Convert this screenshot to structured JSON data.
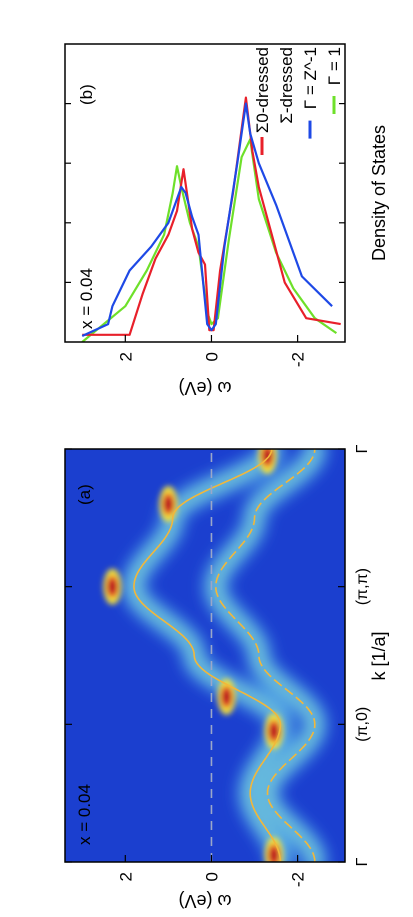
{
  "figure": {
    "orientation": "rotated 90 degrees counter-clockwise",
    "colors": {
      "sigma0_dressed": "#e8202a",
      "sigma_dressed": "#1e49e6",
      "gamma_1": "#6ee02a",
      "map_low": "#0a1f9e",
      "map_high": "#b0001a",
      "band_curve": "#f2b73a"
    }
  },
  "chart_data": [
    {
      "panel": "(a)",
      "type": "heatmap",
      "annotation": "x = 0.04",
      "xlabel": "k [1/a]",
      "ylabel": "ω (eV)",
      "x_ticks": [
        "Γ",
        "(π,0)",
        "(π,π)",
        "Γ"
      ],
      "y_ticks": [
        "2",
        "0",
        "-2"
      ],
      "ylim": [
        -3.1,
        3.4
      ],
      "grid": false,
      "fermi_level_line": 0,
      "k_path_points": [
        0,
        1,
        2,
        3
      ],
      "intensity_peaks": [
        {
          "k": 0.05,
          "omega": -1.45
        },
        {
          "k": 0.95,
          "omega": -1.45
        },
        {
          "k": 1.2,
          "omega": -0.35
        },
        {
          "k": 2.0,
          "omega": 2.3
        },
        {
          "k": 2.6,
          "omega": 1.0
        },
        {
          "k": 2.95,
          "omega": -1.3
        }
      ],
      "band_curves": [
        {
          "k": [
            0.0,
            0.5,
            1.0,
            1.5,
            2.0,
            2.5,
            3.0
          ],
          "omega": [
            -1.6,
            -0.9,
            -1.6,
            0.4,
            1.8,
            0.9,
            -1.4
          ]
        },
        {
          "k": [
            0.0,
            0.5,
            1.0,
            1.5,
            2.0,
            2.5,
            3.0
          ],
          "omega": [
            -2.4,
            -1.3,
            -2.4,
            -1.1,
            -0.1,
            -1.0,
            -2.4
          ]
        }
      ]
    },
    {
      "panel": "(b)",
      "type": "line",
      "annotation": "x = 0.04",
      "xlabel": "Density of States",
      "ylabel": "ω (eV)",
      "y_ticks": [
        "2",
        "0",
        "-2"
      ],
      "ylim": [
        -3.1,
        3.4
      ],
      "xlim": [
        0,
        5.0
      ],
      "grid": false,
      "legend_position": "upper-right",
      "series": [
        {
          "name": "Σ0-dressed",
          "color_key": "sigma0_dressed",
          "omega": [
            3.0,
            1.9,
            1.6,
            1.3,
            1.0,
            0.8,
            0.65,
            0.55,
            0.45,
            0.3,
            0.15,
            0.05,
            -0.05,
            -0.2,
            -0.5,
            -0.8,
            -0.95,
            -1.1,
            -1.4,
            -1.7,
            -2.2,
            -3.0
          ],
          "dos": [
            0.12,
            0.12,
            0.8,
            1.4,
            1.8,
            2.2,
            2.9,
            2.4,
            1.9,
            1.5,
            1.3,
            0.2,
            0.2,
            1.2,
            2.5,
            4.1,
            3.2,
            2.6,
            1.8,
            1.0,
            0.4,
            0.3
          ]
        },
        {
          "name": "Σ-dressed",
          "color_key": "sigma_dressed",
          "omega": [
            3.0,
            2.4,
            2.3,
            1.9,
            1.4,
            1.0,
            0.8,
            0.7,
            0.6,
            0.45,
            0.3,
            0.1,
            0.0,
            -0.1,
            -0.3,
            -0.6,
            -0.8,
            -0.9,
            -1.1,
            -1.5,
            -2.1,
            -2.8
          ],
          "dos": [
            0.1,
            0.3,
            0.6,
            1.2,
            1.6,
            2.0,
            2.4,
            2.6,
            2.5,
            2.1,
            1.8,
            0.3,
            0.2,
            0.3,
            1.6,
            3.0,
            4.0,
            3.5,
            3.0,
            2.3,
            1.1,
            0.6
          ]
        },
        {
          "name": "Γ = Z^-1",
          "color_key": "sigma_dressed",
          "omega": [
            3.0,
            2.4,
            2.3,
            1.9,
            1.4,
            1.0,
            0.8,
            0.7,
            0.6,
            0.45,
            0.3,
            0.1,
            0.0,
            -0.1,
            -0.3,
            -0.6,
            -0.8,
            -0.9,
            -1.1,
            -1.5,
            -2.1,
            -2.8
          ],
          "dos": [
            0.1,
            0.3,
            0.6,
            1.2,
            1.6,
            2.0,
            2.4,
            2.6,
            2.5,
            2.1,
            1.8,
            0.3,
            0.2,
            0.3,
            1.6,
            3.0,
            4.0,
            3.5,
            3.0,
            2.3,
            1.1,
            0.6
          ]
        },
        {
          "name": "Γ = 1",
          "color_key": "gamma_1",
          "omega": [
            3.0,
            2.0,
            1.5,
            1.1,
            0.9,
            0.8,
            0.7,
            0.5,
            0.3,
            0.1,
            0.0,
            -0.15,
            -0.4,
            -0.7,
            -0.9,
            -1.1,
            -1.5,
            -1.9,
            -2.4,
            -2.9
          ],
          "dos": [
            0.0,
            0.6,
            1.2,
            1.8,
            2.5,
            2.95,
            2.6,
            2.0,
            1.6,
            0.5,
            0.3,
            0.4,
            1.7,
            3.1,
            3.4,
            2.4,
            1.5,
            0.9,
            0.4,
            0.15
          ]
        }
      ]
    }
  ],
  "panel_a": {
    "panel_label": "(a)",
    "annotation": "x = 0.04",
    "xlabel": "k [1/a]",
    "ylabel": "ω (eV)",
    "x_ticks": [
      "Γ",
      "(π,0)",
      "(π,π)",
      "Γ"
    ],
    "y_ticks": [
      "2",
      "0",
      "-2"
    ]
  },
  "panel_b": {
    "panel_label": "(b)",
    "annotation": "x = 0.04",
    "xlabel": "Density of States",
    "ylabel": "ω (eV)",
    "y_ticks": [
      "2",
      "0",
      "-2"
    ],
    "legend": [
      "Σ0-dressed",
      "Σ-dressed",
      "Γ = Z^-1",
      "Γ = 1"
    ]
  }
}
